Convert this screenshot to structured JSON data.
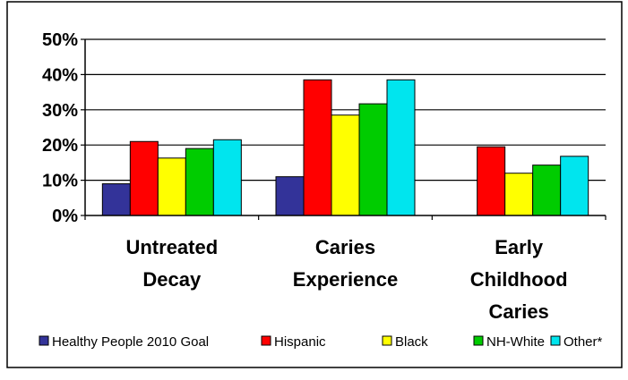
{
  "chart_data": {
    "type": "bar",
    "categories": [
      [
        "Untreated",
        "Decay"
      ],
      [
        "Caries",
        "Experience"
      ],
      [
        "Early",
        "Childhood",
        "Caries"
      ]
    ],
    "series": [
      {
        "name": "Healthy People 2010 Goal",
        "color": "#333399",
        "values": [
          9,
          11,
          null
        ]
      },
      {
        "name": "Hispanic",
        "color": "#ff0000",
        "values": [
          21,
          38.5,
          19.5
        ]
      },
      {
        "name": "Black",
        "color": "#ffff00",
        "values": [
          16.3,
          28.5,
          12
        ]
      },
      {
        "name": "NH-White",
        "color": "#00cc00",
        "values": [
          19,
          31.7,
          14.3
        ]
      },
      {
        "name": "Other*",
        "color": "#00e5ee",
        "values": [
          21.5,
          38.5,
          16.8
        ]
      }
    ],
    "y_ticks": [
      "0%",
      "10%",
      "20%",
      "30%",
      "40%",
      "50%"
    ],
    "ylim": [
      0,
      50
    ],
    "grid": true,
    "legend_position": "bottom"
  }
}
